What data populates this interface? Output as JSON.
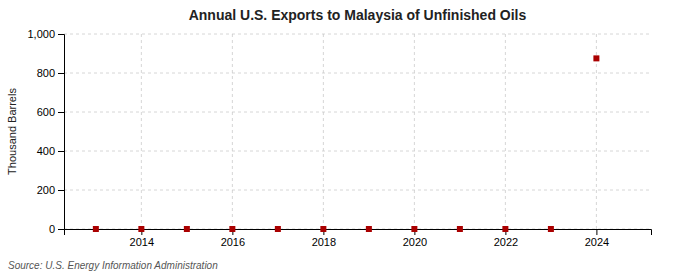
{
  "chart_data": {
    "type": "scatter",
    "title": "Annual U.S. Exports to Malaysia of Unfinished Oils",
    "ylabel": "Thousand Barrels",
    "annotations": [
      "Source: U.S. Energy Information Administration"
    ],
    "x": [
      2013,
      2014,
      2015,
      2016,
      2017,
      2018,
      2019,
      2020,
      2021,
      2022,
      2023,
      2024
    ],
    "values": [
      0,
      0,
      0,
      0,
      0,
      0,
      0,
      0,
      0,
      0,
      0,
      875
    ],
    "color": "#aa0000",
    "marker": "square",
    "xlim": [
      2012.3,
      2025.2
    ],
    "xticks": [
      2014,
      2016,
      2018,
      2020,
      2022,
      2024
    ],
    "ylim": [
      0,
      1000
    ],
    "yticks": [
      0,
      200,
      400,
      600,
      800,
      {
        "value": 1000,
        "label": "1,000"
      }
    ],
    "grid": true
  }
}
